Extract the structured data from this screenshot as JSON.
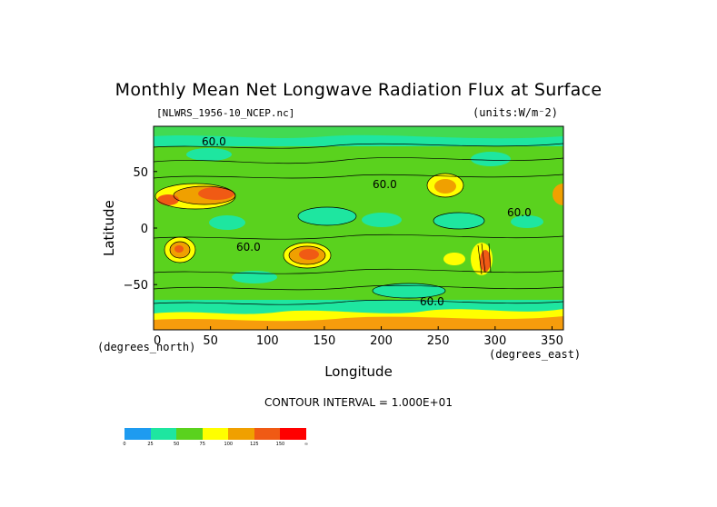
{
  "title": "Monthly Mean Net Longwave Radiation Flux at Surface",
  "file_label": "[NLWRS_1956-10_NCEP.nc]",
  "units_label": "(units:W/m⁻2)",
  "contour_interval": "CONTOUR INTERVAL = 1.000E+01",
  "chart_data": {
    "type": "heatmap",
    "title": "Monthly Mean Net Longwave Radiation Flux at Surface",
    "xlabel": "Longitude",
    "ylabel": "Latitude",
    "x_unit": "(degrees_north)",
    "y_unit": "(degrees_east)",
    "xlim": [
      0,
      360
    ],
    "ylim": [
      -90,
      90
    ],
    "x_ticks": [
      0,
      50,
      100,
      150,
      200,
      250,
      300,
      350
    ],
    "y_ticks": [
      50,
      0,
      -50
    ],
    "contour_labels": [
      "60.0",
      "60.0",
      "60.0",
      "60.0",
      "60.0"
    ],
    "colorbar": {
      "labels": [
        "0",
        "25",
        "50",
        "75",
        "100",
        "125",
        "150",
        "∞"
      ],
      "colors": [
        "#1e9bf0",
        "#1ee6a0",
        "#5ad21e",
        "#ffff00",
        "#f0a000",
        "#f05a14",
        "#ff0000"
      ]
    }
  }
}
